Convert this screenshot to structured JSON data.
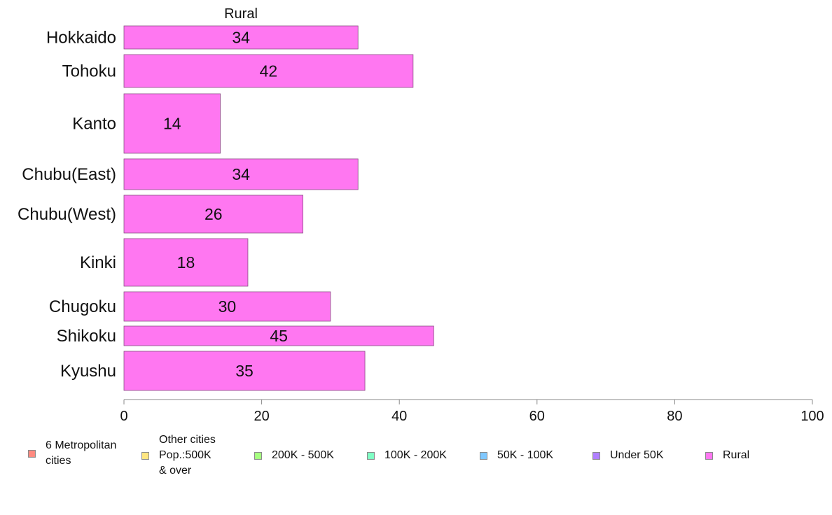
{
  "chart_data": {
    "type": "bar",
    "orientation": "horizontal",
    "title": "Rural",
    "categories": [
      "Hokkaido",
      "Tohoku",
      "Kanto",
      "Chubu(East)",
      "Chubu(West)",
      "Kinki",
      "Chugoku",
      "Shikoku",
      "Kyushu"
    ],
    "series": [
      {
        "name": "Rural",
        "values": [
          34,
          42,
          14,
          34,
          26,
          18,
          30,
          45,
          35
        ],
        "color": "#ff77f1"
      }
    ],
    "data_labels": [
      "34",
      "42",
      "14",
      "34",
      "26",
      "18",
      "30",
      "45",
      "35"
    ],
    "xlim": [
      0,
      100
    ],
    "x_ticks": [
      0,
      20,
      40,
      60,
      80,
      100
    ],
    "x_tick_labels": [
      "0",
      "20",
      "40",
      "60",
      "80",
      "100"
    ],
    "grid": false,
    "legend_position": "bottom"
  },
  "legend": {
    "items": [
      {
        "label": "6 Metropolitan\n cities",
        "color": "#ff8a80"
      },
      {
        "label": "Other cities\nPop.:500K\n & over",
        "color": "#ffe680"
      },
      {
        "label": "200K - 500K",
        "color": "#a6ff80"
      },
      {
        "label": "100K - 200K",
        "color": "#80ffc4"
      },
      {
        "label": "50K - 100K",
        "color": "#80c8ff"
      },
      {
        "label": "Under 50K",
        "color": "#b080ff"
      },
      {
        "label": "Rural",
        "color": "#ff77f1"
      }
    ]
  }
}
